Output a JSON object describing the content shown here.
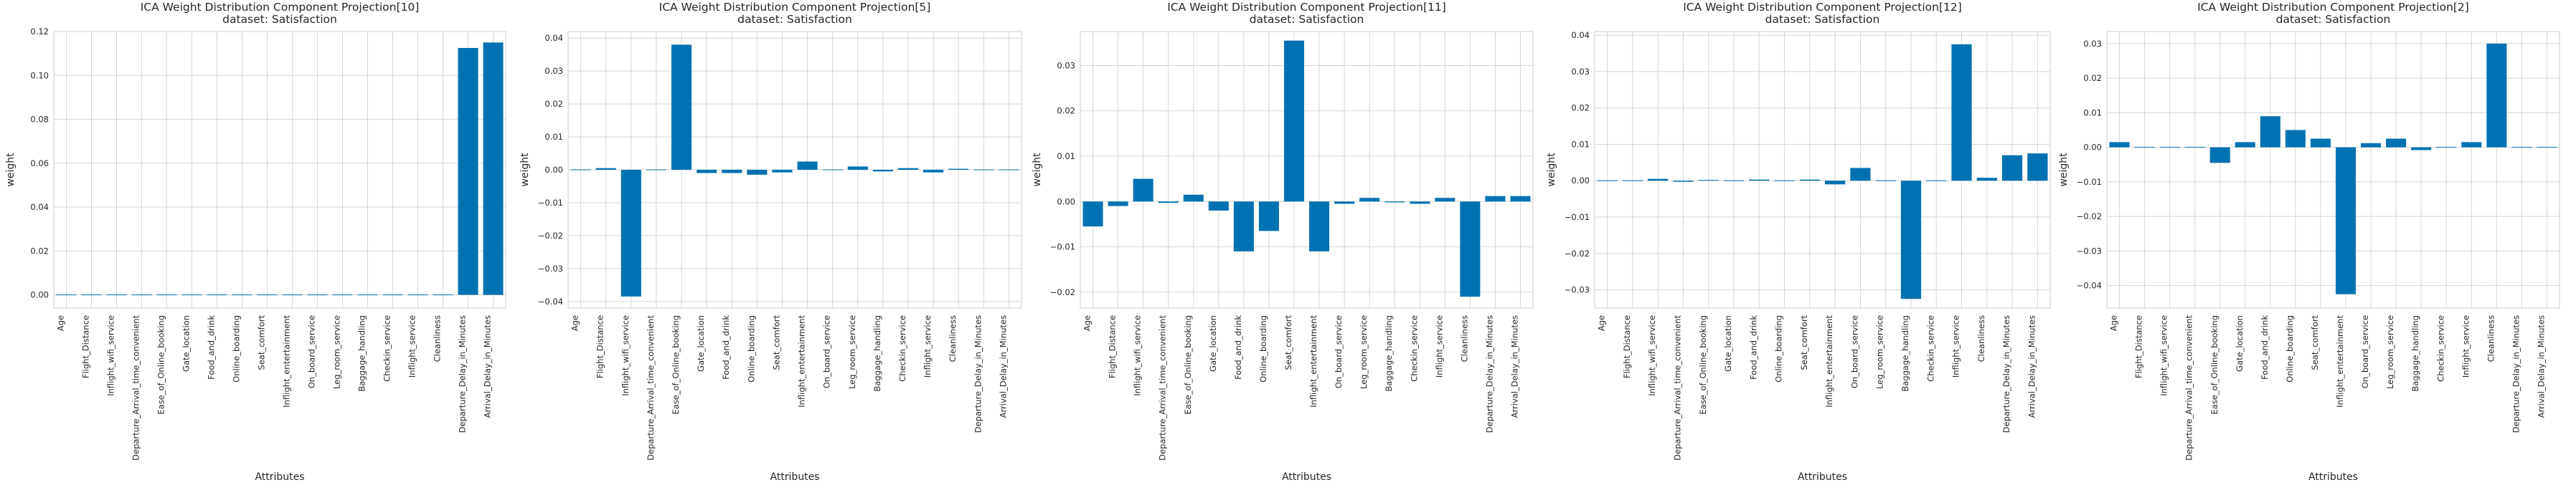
{
  "chart_data": [
    {
      "type": "bar",
      "title": "ICA Weight Distribution Component Projection[10]",
      "subtitle": "dataset: Satisfaction",
      "xlabel": "Attributes",
      "ylabel": "weight",
      "ylim": [
        -0.006,
        0.12
      ],
      "yticks": [
        0.0,
        0.02,
        0.04,
        0.06,
        0.08,
        0.1,
        0.12
      ],
      "ytick_labels": [
        "0.00",
        "0.02",
        "0.04",
        "0.06",
        "0.08",
        "0.10",
        "0.12"
      ],
      "grid": true,
      "categories": [
        "Age",
        "Flight_Distance",
        "Inflight_wifi_service",
        "Departure_Arrival_time_convenient",
        "Ease_of_Online_booking",
        "Gate_location",
        "Food_and_drink",
        "Online_boarding",
        "Seat_comfort",
        "Inflight_entertainment",
        "On_board_service",
        "Leg_room_service",
        "Baggage_handling",
        "Checkin_service",
        "Inflight_service",
        "Cleanliness",
        "Departure_Delay_in_Minutes",
        "Arrival_Delay_in_Minutes"
      ],
      "values": [
        0.0,
        0.0003,
        0.0003,
        0.0,
        -0.0003,
        0.0,
        0.0003,
        0.0,
        0.0,
        -0.0003,
        0.0,
        0.0,
        0.0,
        0.0,
        0.0002,
        0.0002,
        0.1125,
        0.115
      ]
    },
    {
      "type": "bar",
      "title": "ICA Weight Distribution Component Projection[5]",
      "subtitle": "dataset: Satisfaction",
      "xlabel": "Attributes",
      "ylabel": "weight",
      "ylim": [
        -0.042,
        0.042
      ],
      "yticks": [
        -0.04,
        -0.03,
        -0.02,
        -0.01,
        0.0,
        0.01,
        0.02,
        0.03,
        0.04
      ],
      "ytick_labels": [
        "−0.04",
        "−0.03",
        "−0.02",
        "−0.01",
        "0.00",
        "0.01",
        "0.02",
        "0.03",
        "0.04"
      ],
      "grid": true,
      "categories": [
        "Age",
        "Flight_Distance",
        "Inflight_wifi_service",
        "Departure_Arrival_time_convenient",
        "Ease_of_Online_booking",
        "Gate_location",
        "Food_and_drink",
        "Online_boarding",
        "Seat_comfort",
        "Inflight_entertainment",
        "On_board_service",
        "Leg_room_service",
        "Baggage_handling",
        "Checkin_service",
        "Inflight_service",
        "Cleanliness",
        "Departure_Delay_in_Minutes",
        "Arrival_Delay_in_Minutes"
      ],
      "values": [
        0.0002,
        0.0005,
        -0.0385,
        0.0,
        0.038,
        -0.001,
        -0.001,
        -0.0015,
        -0.0008,
        0.0025,
        0.0,
        0.001,
        -0.0005,
        0.0005,
        -0.0008,
        0.0003,
        0.0002,
        0.0002
      ]
    },
    {
      "type": "bar",
      "title": "ICA Weight Distribution Component Projection[11]",
      "subtitle": "dataset: Satisfaction",
      "xlabel": "Attributes",
      "ylabel": "weight",
      "ylim": [
        -0.0235,
        0.0375
      ],
      "yticks": [
        -0.02,
        -0.01,
        0.0,
        0.01,
        0.02,
        0.03
      ],
      "ytick_labels": [
        "−0.02",
        "−0.01",
        "0.00",
        "0.01",
        "0.02",
        "0.03"
      ],
      "grid": true,
      "categories": [
        "Age",
        "Flight_Distance",
        "Inflight_wifi_service",
        "Departure_Arrival_time_convenient",
        "Ease_of_Online_booking",
        "Gate_location",
        "Food_and_drink",
        "Online_boarding",
        "Seat_comfort",
        "Inflight_entertainment",
        "On_board_service",
        "Leg_room_service",
        "Baggage_handling",
        "Checkin_service",
        "Inflight_service",
        "Cleanliness",
        "Departure_Delay_in_Minutes",
        "Arrival_Delay_in_Minutes"
      ],
      "values": [
        -0.0055,
        -0.001,
        0.005,
        -0.0003,
        0.0015,
        -0.002,
        -0.011,
        -0.0065,
        0.0355,
        -0.011,
        -0.0005,
        0.0008,
        -0.0002,
        -0.0005,
        0.0008,
        -0.021,
        0.0012,
        0.0012
      ]
    },
    {
      "type": "bar",
      "title": "ICA Weight Distribution Component Projection[12]",
      "subtitle": "dataset: Satisfaction",
      "xlabel": "Attributes",
      "ylabel": "weight",
      "ylim": [
        -0.035,
        0.041
      ],
      "yticks": [
        -0.03,
        -0.02,
        -0.01,
        0.0,
        0.01,
        0.02,
        0.03,
        0.04
      ],
      "ytick_labels": [
        "−0.03",
        "−0.02",
        "−0.01",
        "0.00",
        "0.01",
        "0.02",
        "0.03",
        "0.04"
      ],
      "grid": true,
      "categories": [
        "Age",
        "Flight_Distance",
        "Inflight_wifi_service",
        "Departure_Arrival_time_convenient",
        "Ease_of_Online_booking",
        "Gate_location",
        "Food_and_drink",
        "Online_boarding",
        "Seat_comfort",
        "Inflight_entertainment",
        "On_board_service",
        "Leg_room_service",
        "Baggage_handling",
        "Checkin_service",
        "Inflight_service",
        "Cleanliness",
        "Departure_Delay_in_Minutes",
        "Arrival_Delay_in_Minutes"
      ],
      "values": [
        0.0,
        0.0,
        0.0005,
        -0.0003,
        0.0002,
        0.0,
        0.0003,
        0.0,
        0.0003,
        -0.001,
        0.0035,
        0.0,
        -0.0325,
        0.0,
        0.0375,
        0.0008,
        0.007,
        0.0075
      ]
    },
    {
      "type": "bar",
      "title": "ICA Weight Distribution Component Projection[2]",
      "subtitle": "dataset: Satisfaction",
      "xlabel": "Attributes",
      "ylabel": "weight",
      "ylim": [
        -0.0465,
        0.0335
      ],
      "yticks": [
        -0.04,
        -0.03,
        -0.02,
        -0.01,
        0.0,
        0.01,
        0.02,
        0.03
      ],
      "ytick_labels": [
        "−0.04",
        "−0.03",
        "−0.02",
        "−0.01",
        "0.00",
        "0.01",
        "0.02",
        "0.03"
      ],
      "grid": true,
      "categories": [
        "Age",
        "Flight_Distance",
        "Inflight_wifi_service",
        "Departure_Arrival_time_convenient",
        "Ease_of_Online_booking",
        "Gate_location",
        "Food_and_drink",
        "Online_boarding",
        "Seat_comfort",
        "Inflight_entertainment",
        "On_board_service",
        "Leg_room_service",
        "Baggage_handling",
        "Checkin_service",
        "Inflight_service",
        "Cleanliness",
        "Departure_Delay_in_Minutes",
        "Arrival_Delay_in_Minutes"
      ],
      "values": [
        0.0015,
        0.0,
        0.0002,
        0.0,
        -0.0045,
        0.0015,
        0.009,
        0.005,
        0.0025,
        -0.0425,
        0.0012,
        0.0025,
        -0.0008,
        0.0,
        0.0015,
        0.03,
        0.0,
        0.0
      ]
    }
  ]
}
